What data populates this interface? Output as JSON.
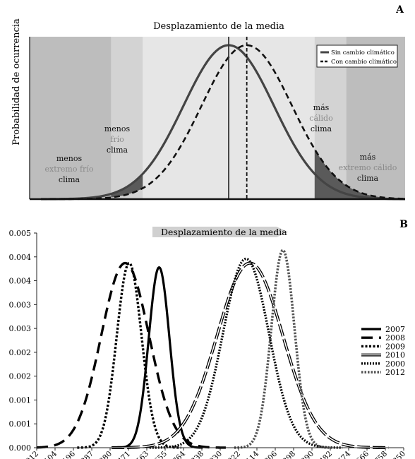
{
  "panel_a": {
    "letter": "A",
    "title": "Desplazamiento de la media",
    "ylabel": "Probabilidad de ocurrencia",
    "legend": [
      "Sin cambio climático",
      "Con cambio climático"
    ],
    "zones": {
      "extreme_cold": [
        "menos",
        "extremo frío",
        "clima"
      ],
      "cold": [
        "menos",
        "frío",
        "clima"
      ],
      "hot": [
        "más",
        "cálido",
        "clima"
      ],
      "extreme_hot": [
        "más",
        "extremo cálido",
        "clima"
      ]
    }
  },
  "panel_b": {
    "letter": "B",
    "arrow_label": "Desplazamiento de la media"
  },
  "chart_data": [
    {
      "type": "line",
      "panel": "A",
      "title": "Desplazamiento de la media",
      "ylabel": "Probabilidad de ocurrencia",
      "series": [
        {
          "name": "Sin cambio climático",
          "mean": 0.0,
          "sd": 1.0
        },
        {
          "name": "Con cambio climático",
          "mean": 0.4,
          "sd": 1.0
        }
      ],
      "xlim": [
        -4.4,
        3.9
      ],
      "zones": [
        {
          "label": "menos extremo frío clima",
          "range": [
            -4.4,
            -2.6
          ]
        },
        {
          "label": "menos frío clima",
          "range": [
            -2.6,
            -1.9
          ]
        },
        {
          "label": "más cálido clima",
          "range": [
            1.9,
            2.6
          ]
        },
        {
          "label": "más extremo cálido clima",
          "range": [
            2.6,
            3.9
          ]
        }
      ],
      "legend": "top-right"
    },
    {
      "type": "line",
      "panel": "B",
      "x_ticks": [
        2012,
        2104,
        2196,
        2287,
        2380,
        2471,
        2563,
        2655,
        2764,
        2838,
        2930,
        3022,
        3114,
        3206,
        3298,
        3390,
        3482,
        3574,
        3666,
        3758,
        3850
      ],
      "y_ticks": [
        "0.000",
        "0.001",
        "0.001",
        "0.002",
        "0.002",
        "0.003",
        "0.003",
        "0.004",
        "0.004",
        "0.005"
      ],
      "xlim": [
        2012,
        3850
      ],
      "ylim": [
        0,
        0.005
      ],
      "series": [
        {
          "name": "2007",
          "mean": 2625,
          "sd": 52,
          "peak": 0.0042
        },
        {
          "name": "2008",
          "mean": 2455,
          "sd": 120,
          "peak": 0.0043
        },
        {
          "name": "2009",
          "mean": 2475,
          "sd": 62,
          "peak": 0.0043
        },
        {
          "name": "2010",
          "mean": 3080,
          "sd": 165,
          "peak": 0.0043
        },
        {
          "name": "2000",
          "mean": 3060,
          "sd": 115,
          "peak": 0.0044
        },
        {
          "name": "2012",
          "mean": 3245,
          "sd": 58,
          "peak": 0.0046
        }
      ],
      "legend": "right"
    }
  ]
}
